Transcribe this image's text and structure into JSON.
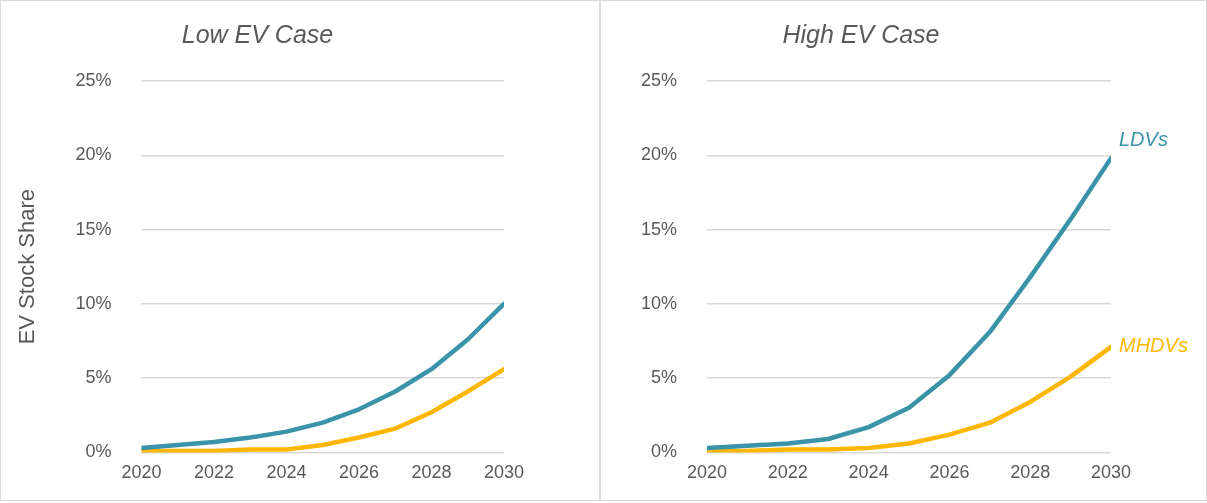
{
  "chart_data": [
    {
      "type": "line",
      "title": "Low EV Case",
      "ylabel": "EV Stock Share",
      "x": [
        2020,
        2021,
        2022,
        2023,
        2024,
        2025,
        2026,
        2027,
        2028,
        2029,
        2030
      ],
      "xlim": [
        2020,
        2030
      ],
      "xticks": [
        2020,
        2022,
        2024,
        2026,
        2028,
        2030
      ],
      "ylim": [
        0,
        25
      ],
      "yticks": [
        {
          "value": 0,
          "label": "0%"
        },
        {
          "value": 5,
          "label": "5%"
        },
        {
          "value": 10,
          "label": "10%"
        },
        {
          "value": 15,
          "label": "15%"
        },
        {
          "value": 20,
          "label": "20%"
        },
        {
          "value": 25,
          "label": "25%"
        }
      ],
      "grid": "y",
      "marker": "none",
      "line_style": "solid",
      "legend": false,
      "series": [
        {
          "color": "#3a93a8",
          "values": [
            0.3,
            0.5,
            0.7,
            1.0,
            1.4,
            2.0,
            2.9,
            4.1,
            5.6,
            7.6,
            10.0
          ]
        },
        {
          "color": "#ffb703",
          "values": [
            0.1,
            0.1,
            0.1,
            0.2,
            0.2,
            0.5,
            1.0,
            1.6,
            2.7,
            4.1,
            5.6
          ]
        }
      ]
    },
    {
      "type": "line",
      "title": "High EV Case",
      "x": [
        2020,
        2021,
        2022,
        2023,
        2024,
        2025,
        2026,
        2027,
        2028,
        2029,
        2030
      ],
      "xlim": [
        2020,
        2030
      ],
      "xticks": [
        2020,
        2022,
        2024,
        2026,
        2028,
        2030
      ],
      "ylim": [
        0,
        25
      ],
      "yticks": [
        {
          "value": 0,
          "label": "0%"
        },
        {
          "value": 5,
          "label": "5%"
        },
        {
          "value": 10,
          "label": "10%"
        },
        {
          "value": 15,
          "label": "15%"
        },
        {
          "value": 20,
          "label": "20%"
        },
        {
          "value": 25,
          "label": "25%"
        }
      ],
      "grid": "y",
      "marker": "none",
      "line_style": "solid",
      "legend": false,
      "series": [
        {
          "name": "LDVs",
          "color": "#3a93a8",
          "values": [
            0.3,
            0.45,
            0.6,
            0.9,
            1.7,
            3.0,
            5.2,
            8.1,
            11.8,
            15.7,
            19.8
          ]
        },
        {
          "name": "MHDVs",
          "color": "#ffb703",
          "values": [
            0.1,
            0.1,
            0.2,
            0.2,
            0.3,
            0.6,
            1.2,
            2.0,
            3.4,
            5.1,
            7.1
          ]
        }
      ]
    }
  ]
}
